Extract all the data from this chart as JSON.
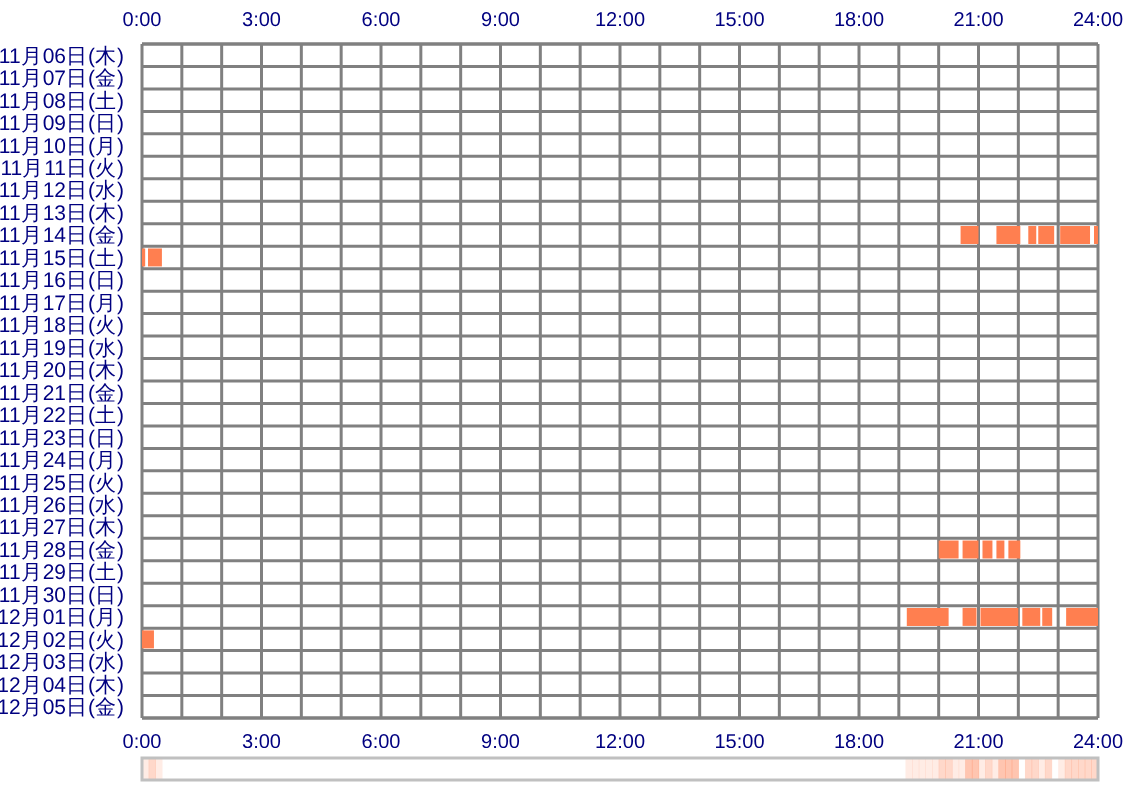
{
  "chart_data": {
    "type": "bar",
    "orientation": "horizontal",
    "categories": [
      "11月06日(木)",
      "11月07日(金)",
      "11月08日(土)",
      "11月09日(日)",
      "11月10日(月)",
      "11月11日(火)",
      "11月12日(水)",
      "11月13日(木)",
      "11月14日(金)",
      "11月15日(土)",
      "11月16日(日)",
      "11月17日(月)",
      "11月18日(火)",
      "11月19日(水)",
      "11月20日(木)",
      "11月21日(金)",
      "11月22日(土)",
      "11月23日(日)",
      "11月24日(月)",
      "11月25日(火)",
      "11月26日(水)",
      "11月27日(木)",
      "11月28日(金)",
      "11月29日(土)",
      "11月30日(日)",
      "12月01日(月)",
      "12月02日(火)",
      "12月03日(水)",
      "12月04日(木)",
      "12月05日(金)"
    ],
    "series": [
      {
        "color": "#ff7f50",
        "base": [
          null,
          null,
          null,
          null,
          null,
          null,
          null,
          null,
          20.55,
          0,
          null,
          null,
          null,
          null,
          null,
          null,
          null,
          null,
          null,
          null,
          null,
          null,
          20,
          null,
          null,
          19.2,
          0,
          null,
          null,
          null
        ],
        "values": [
          null,
          null,
          null,
          null,
          null,
          null,
          null,
          null,
          0.45,
          0.08,
          null,
          null,
          null,
          null,
          null,
          null,
          null,
          null,
          null,
          null,
          null,
          null,
          0.5,
          null,
          null,
          1.05,
          0.3,
          null,
          null,
          null
        ]
      },
      {
        "color": "#ff7f50",
        "base": [
          null,
          null,
          null,
          null,
          null,
          null,
          null,
          null,
          21.45,
          0.15,
          null,
          null,
          null,
          null,
          null,
          null,
          null,
          null,
          null,
          null,
          null,
          null,
          20.6,
          null,
          null,
          20.6,
          null,
          null,
          null,
          null
        ],
        "values": [
          null,
          null,
          null,
          null,
          null,
          null,
          null,
          null,
          0.6,
          0.35,
          null,
          null,
          null,
          null,
          null,
          null,
          null,
          null,
          null,
          null,
          null,
          null,
          0.4,
          null,
          null,
          0.35,
          null,
          null,
          null,
          null
        ]
      },
      {
        "color": "#ff7f50",
        "base": [
          null,
          null,
          null,
          null,
          null,
          null,
          null,
          null,
          22.25,
          null,
          null,
          null,
          null,
          null,
          null,
          null,
          null,
          null,
          null,
          null,
          null,
          null,
          21.1,
          null,
          null,
          21.05,
          null,
          null,
          null,
          null
        ],
        "values": [
          null,
          null,
          null,
          null,
          null,
          null,
          null,
          null,
          0.2,
          null,
          null,
          null,
          null,
          null,
          null,
          null,
          null,
          null,
          null,
          null,
          null,
          null,
          0.25,
          null,
          null,
          0.95,
          null,
          null,
          null,
          null
        ]
      },
      {
        "color": "#ff7f50",
        "base": [
          null,
          null,
          null,
          null,
          null,
          null,
          null,
          null,
          22.5,
          null,
          null,
          null,
          null,
          null,
          null,
          null,
          null,
          null,
          null,
          null,
          null,
          null,
          21.45,
          null,
          null,
          22.1,
          null,
          null,
          null,
          null
        ],
        "values": [
          null,
          null,
          null,
          null,
          null,
          null,
          null,
          null,
          0.4,
          null,
          null,
          null,
          null,
          null,
          null,
          null,
          null,
          null,
          null,
          null,
          null,
          null,
          0.2,
          null,
          null,
          0.45,
          null,
          null,
          null,
          null
        ]
      },
      {
        "color": "#ff7f50",
        "base": [
          null,
          null,
          null,
          null,
          null,
          null,
          null,
          null,
          23.05,
          null,
          null,
          null,
          null,
          null,
          null,
          null,
          null,
          null,
          null,
          null,
          null,
          null,
          21.75,
          null,
          null,
          22.6,
          null,
          null,
          null,
          null
        ],
        "values": [
          null,
          null,
          null,
          null,
          null,
          null,
          null,
          null,
          0.75,
          null,
          null,
          null,
          null,
          null,
          null,
          null,
          null,
          null,
          null,
          null,
          null,
          null,
          0.3,
          null,
          null,
          0.25,
          null,
          null,
          null,
          null
        ]
      },
      {
        "color": "#ff7f50",
        "base": [
          null,
          null,
          null,
          null,
          null,
          null,
          null,
          null,
          23.9,
          null,
          null,
          null,
          null,
          null,
          null,
          null,
          null,
          null,
          null,
          null,
          null,
          null,
          null,
          null,
          null,
          23.2,
          null,
          null,
          null,
          null
        ],
        "values": [
          null,
          null,
          null,
          null,
          null,
          null,
          null,
          null,
          0.1,
          null,
          null,
          null,
          null,
          null,
          null,
          null,
          null,
          null,
          null,
          null,
          null,
          null,
          null,
          null,
          null,
          0.8,
          null,
          null,
          null,
          null
        ]
      }
    ],
    "xlim": [
      0,
      24
    ],
    "xticks": [
      {
        "value": 0,
        "label": "0:00"
      },
      {
        "value": 1,
        "label": null
      },
      {
        "value": 2,
        "label": null
      },
      {
        "value": 3,
        "label": "3:00"
      },
      {
        "value": 4,
        "label": null
      },
      {
        "value": 5,
        "label": null
      },
      {
        "value": 6,
        "label": "6:00"
      },
      {
        "value": 7,
        "label": null
      },
      {
        "value": 8,
        "label": null
      },
      {
        "value": 9,
        "label": "9:00"
      },
      {
        "value": 10,
        "label": null
      },
      {
        "value": 11,
        "label": null
      },
      {
        "value": 12,
        "label": "12:00"
      },
      {
        "value": 13,
        "label": null
      },
      {
        "value": 14,
        "label": null
      },
      {
        "value": 15,
        "label": "15:00"
      },
      {
        "value": 16,
        "label": null
      },
      {
        "value": 17,
        "label": null
      },
      {
        "value": 18,
        "label": "18:00"
      },
      {
        "value": 19,
        "label": null
      },
      {
        "value": 20,
        "label": null
      },
      {
        "value": 21,
        "label": "21:00"
      },
      {
        "value": 22,
        "label": null
      },
      {
        "value": 23,
        "label": null
      },
      {
        "value": 24,
        "label": "24:00"
      }
    ],
    "x2lim": [
      0,
      24
    ],
    "x2ticks": [
      {
        "value": 0,
        "label": "0:00"
      },
      {
        "value": 1,
        "label": null
      },
      {
        "value": 2,
        "label": null
      },
      {
        "value": 3,
        "label": "3:00"
      },
      {
        "value": 4,
        "label": null
      },
      {
        "value": 5,
        "label": null
      },
      {
        "value": 6,
        "label": "6:00"
      },
      {
        "value": 7,
        "label": null
      },
      {
        "value": 8,
        "label": null
      },
      {
        "value": 9,
        "label": "9:00"
      },
      {
        "value": 10,
        "label": null
      },
      {
        "value": 11,
        "label": null
      },
      {
        "value": 12,
        "label": "12:00"
      },
      {
        "value": 13,
        "label": null
      },
      {
        "value": 14,
        "label": null
      },
      {
        "value": 15,
        "label": "15:00"
      },
      {
        "value": 16,
        "label": null
      },
      {
        "value": 17,
        "label": null
      },
      {
        "value": 18,
        "label": "18:00"
      },
      {
        "value": 19,
        "label": null
      },
      {
        "value": 20,
        "label": null
      },
      {
        "value": 21,
        "label": "21:00"
      },
      {
        "value": 22,
        "label": null
      },
      {
        "value": 23,
        "label": null
      },
      {
        "value": 24,
        "label": "24:00"
      }
    ],
    "grid": true
  }
}
